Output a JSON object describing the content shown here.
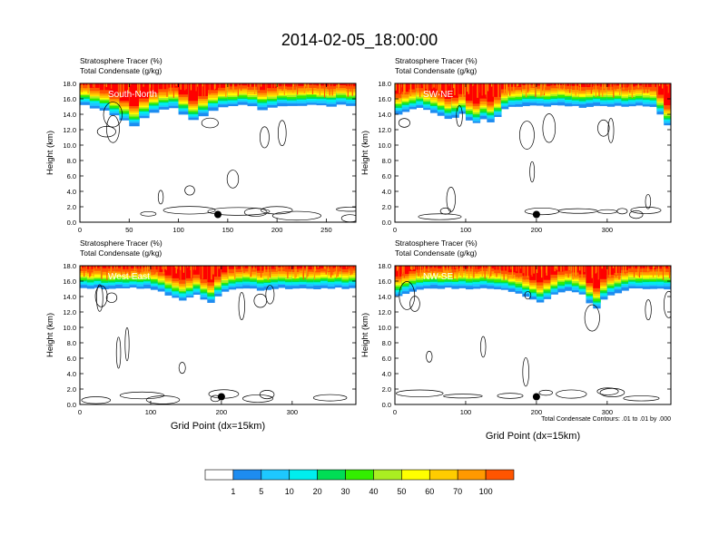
{
  "title": "2014-02-05_18:00:00",
  "xlabel": "Grid Point (dx=15km)",
  "ylabel": "Height (km)",
  "ylim": [
    0,
    18
  ],
  "yticks": [
    "0.0",
    "2.0",
    "4.0",
    "6.0",
    "8.0",
    "10.0",
    "12.0",
    "14.0",
    "16.0",
    "18.0"
  ],
  "contour_note": "Total Condensate Contours: .01 to .01 by .000",
  "colorbar": {
    "levels": [
      "1",
      "5",
      "10",
      "20",
      "30",
      "40",
      "50",
      "60",
      "70",
      "100"
    ],
    "colors": [
      "#ffffff",
      "#1e8cf0",
      "#1ec8ff",
      "#00eeee",
      "#00dd55",
      "#33ee00",
      "#aaee22",
      "#ffff00",
      "#ffcc00",
      "#ff9900",
      "#ff5500",
      "#ff0000"
    ]
  },
  "chart_data": [
    {
      "type": "heatmap",
      "panel": "South-North",
      "subtitle_left": "Stratosphere Tracer   (%)",
      "subtitle_left2": "Total Condensate   (g/kg)",
      "xlim": [
        0,
        280
      ],
      "xticks": [
        0,
        50,
        100,
        150,
        200,
        250
      ],
      "ylim": [
        0,
        18
      ],
      "marker_x": 140,
      "marker_y": 1.0,
      "tracer_base_km": [
        15.2,
        14.8,
        14.5,
        13.8,
        13.2,
        12.5,
        13.5,
        14.2,
        14.6,
        14.8,
        14.0,
        13.2,
        13.8,
        14.5,
        14.9,
        15.0,
        15.2,
        15.0,
        14.6,
        14.8,
        15.1,
        15.0,
        15.1,
        15.2,
        15.1,
        15.0,
        15.2,
        15.1
      ]
    },
    {
      "type": "heatmap",
      "panel": "SW-NE",
      "subtitle_left": "Stratosphere Tracer   (%)",
      "subtitle_left2": "Total Condensate   (g/kg)",
      "xlim": [
        0,
        390
      ],
      "xticks": [
        0,
        100,
        200,
        300
      ],
      "ylim": [
        0,
        18
      ],
      "marker_x": 200,
      "marker_y": 1.0,
      "tracer_base_km": [
        14.0,
        14.3,
        14.6,
        14.8,
        14.5,
        14.2,
        13.8,
        13.4,
        13.6,
        14.0,
        13.2,
        12.8,
        13.4,
        13.0,
        13.6,
        14.6,
        14.9,
        15.0,
        15.1,
        15.2,
        15.1,
        15.0,
        15.1,
        15.2,
        15.1,
        15.0,
        14.9,
        15.0,
        15.1,
        15.0,
        15.0,
        15.1,
        14.9,
        15.0,
        15.1,
        15.0,
        14.9,
        14.0,
        12.5
      ]
    },
    {
      "type": "heatmap",
      "panel": "West-East",
      "subtitle_left": "Stratosphere Tracer   (%)",
      "subtitle_left2": "Total Condensate   (g/kg)",
      "xlim": [
        0,
        390
      ],
      "xticks": [
        0,
        100,
        200,
        300
      ],
      "ylim": [
        0,
        18
      ],
      "marker_x": 200,
      "marker_y": 1.0,
      "tracer_base_km": [
        15.1,
        15.0,
        15.1,
        15.0,
        15.0,
        15.1,
        15.0,
        15.1,
        15.0,
        15.1,
        14.9,
        14.6,
        14.2,
        13.8,
        13.5,
        13.8,
        14.2,
        13.6,
        13.2,
        14.0,
        14.6,
        14.9,
        15.0,
        15.1,
        15.0,
        14.8,
        14.9,
        15.0,
        15.1,
        15.0,
        15.0,
        15.1,
        15.0,
        15.0,
        15.1,
        15.0,
        15.1,
        15.0,
        15.1
      ]
    },
    {
      "type": "heatmap",
      "panel": "NW-SE",
      "subtitle_left": "Stratosphere Tracer   (%)",
      "subtitle_left2": "Total Condensate   (g/kg)",
      "xlim": [
        0,
        390
      ],
      "xticks": [
        0,
        100,
        200,
        300
      ],
      "ylim": [
        0,
        18
      ],
      "marker_x": 200,
      "marker_y": 1.0,
      "tracer_base_km": [
        14.0,
        14.4,
        14.7,
        14.9,
        15.0,
        15.1,
        15.0,
        15.1,
        15.0,
        15.1,
        15.0,
        15.0,
        15.1,
        15.0,
        14.9,
        14.8,
        14.6,
        14.4,
        14.0,
        13.6,
        13.2,
        13.6,
        14.2,
        14.6,
        14.8,
        14.5,
        14.2,
        13.2,
        12.4,
        13.6,
        14.2,
        14.5,
        14.8,
        15.0,
        15.0,
        15.0,
        15.0,
        15.0,
        15.0
      ]
    }
  ]
}
